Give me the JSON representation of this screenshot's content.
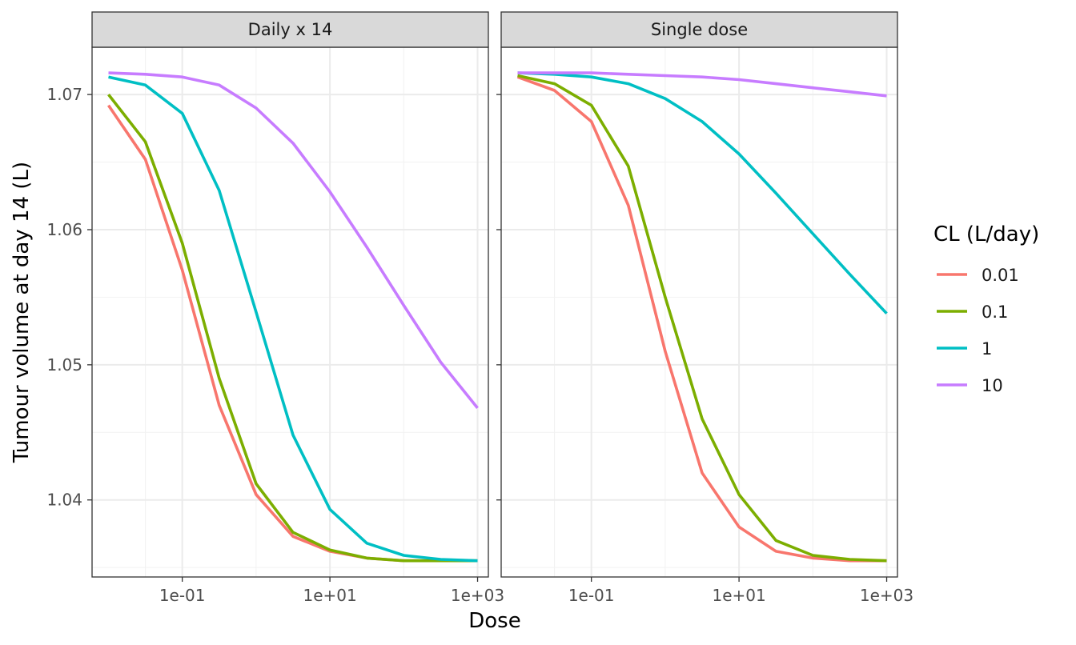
{
  "chart_data": {
    "type": "line",
    "xlabel": "Dose",
    "ylabel": "Tumour volume at day 14 (L)",
    "x_scale": "log10",
    "xlim": [
      0.006,
      1400
    ],
    "ylim": [
      1.0343,
      1.0735
    ],
    "x_ticks": [
      {
        "value": 0.1,
        "label": "1e-01"
      },
      {
        "value": 10,
        "label": "1e+01"
      },
      {
        "value": 1000,
        "label": "1e+03"
      }
    ],
    "y_ticks": [
      {
        "value": 1.04,
        "label": "1.04"
      },
      {
        "value": 1.05,
        "label": "1.05"
      },
      {
        "value": 1.06,
        "label": "1.06"
      },
      {
        "value": 1.07,
        "label": "1.07"
      }
    ],
    "grid": true,
    "legend": {
      "title": "CL (L/day)",
      "position": "right",
      "entries": [
        {
          "label": "0.01",
          "color": "#F8766D"
        },
        {
          "label": "0.1",
          "color": "#7CAE00"
        },
        {
          "label": "1",
          "color": "#00BFC4"
        },
        {
          "label": "10",
          "color": "#C77CFF"
        }
      ]
    },
    "x": [
      0.01,
      0.03162,
      0.1,
      0.3162,
      1,
      3.162,
      10,
      31.62,
      100,
      316.2,
      1000
    ],
    "panels": [
      {
        "title": "Daily x 14",
        "series": [
          {
            "name": "0.01",
            "color": "#F8766D",
            "values": [
              1.0692,
              1.0652,
              1.057,
              1.047,
              1.0404,
              1.0373,
              1.0362,
              1.0357,
              1.0355,
              1.0355,
              1.0355
            ]
          },
          {
            "name": "0.1",
            "color": "#7CAE00",
            "values": [
              1.07,
              1.0665,
              1.059,
              1.049,
              1.0412,
              1.0376,
              1.0363,
              1.0357,
              1.0355,
              1.0355,
              1.0355
            ]
          },
          {
            "name": "1",
            "color": "#00BFC4",
            "values": [
              1.0713,
              1.0707,
              1.0686,
              1.0629,
              1.0539,
              1.0448,
              1.0393,
              1.0368,
              1.0359,
              1.0356,
              1.0355
            ]
          },
          {
            "name": "10",
            "color": "#C77CFF",
            "values": [
              1.0716,
              1.0715,
              1.0713,
              1.0707,
              1.069,
              1.0664,
              1.0628,
              1.0587,
              1.0544,
              1.0502,
              1.0468
            ]
          }
        ]
      },
      {
        "title": "Single dose",
        "series": [
          {
            "name": "0.01",
            "color": "#F8766D",
            "values": [
              1.0713,
              1.0703,
              1.068,
              1.0618,
              1.051,
              1.042,
              1.038,
              1.0362,
              1.0357,
              1.0355,
              1.0355
            ]
          },
          {
            "name": "0.1",
            "color": "#7CAE00",
            "values": [
              1.0714,
              1.0708,
              1.0692,
              1.0647,
              1.055,
              1.046,
              1.0404,
              1.037,
              1.0359,
              1.0356,
              1.0355
            ]
          },
          {
            "name": "1",
            "color": "#00BFC4",
            "values": [
              1.0716,
              1.0715,
              1.0713,
              1.0708,
              1.0697,
              1.068,
              1.0656,
              1.0627,
              1.0597,
              1.0567,
              1.0538
            ]
          },
          {
            "name": "10",
            "color": "#C77CFF",
            "values": [
              1.0716,
              1.0716,
              1.0716,
              1.0715,
              1.0714,
              1.0713,
              1.0711,
              1.0708,
              1.0705,
              1.0702,
              1.0699
            ]
          }
        ]
      }
    ]
  }
}
